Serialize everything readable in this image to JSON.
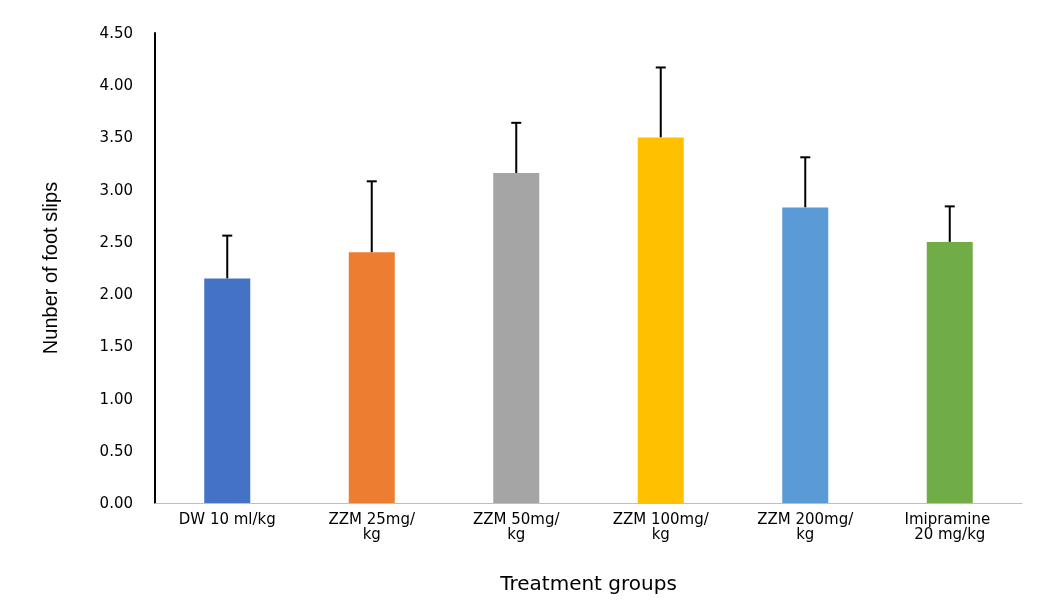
{
  "chart_data": {
    "type": "bar",
    "xlabel": "Treatment groups",
    "ylabel": "Nunber of foot slips",
    "categories": [
      "DW 10 ml/kg",
      "ZZM 25mg/kg",
      "ZZM 50mg/kg",
      "ZZM 100mg/kg",
      "ZZM 200mg/kg",
      "Imipramine 20 mg/kg"
    ],
    "values": [
      2.15,
      2.4,
      3.16,
      3.5,
      2.83,
      2.5
    ],
    "colors": [
      "#4472c4",
      "#ed7d31",
      "#a5a5a5",
      "#ffc000",
      "#5b9bd5",
      "#70ad47"
    ],
    "errors": [
      [
        2.15,
        2.56
      ],
      [
        2.4,
        3.08
      ],
      [
        3.16,
        3.64
      ],
      [
        3.5,
        4.17
      ],
      [
        2.83,
        3.31
      ],
      [
        2.5,
        2.84
      ]
    ],
    "ylim": [
      0,
      4.5
    ],
    "yticks": [
      {
        "value": 0,
        "label": "0.00"
      },
      {
        "value": 0.5,
        "label": "0.50"
      },
      {
        "value": 1,
        "label": "1.00"
      },
      {
        "value": 1.5,
        "label": "1.50"
      },
      {
        "value": 2,
        "label": "2.00"
      },
      {
        "value": 2.5,
        "label": "2.50"
      },
      {
        "value": 3,
        "label": "3.00"
      },
      {
        "value": 3.5,
        "label": "3.50"
      },
      {
        "value": 4,
        "label": "4.00"
      },
      {
        "value": 4.5,
        "label": "4.50"
      }
    ],
    "grid": false
  }
}
